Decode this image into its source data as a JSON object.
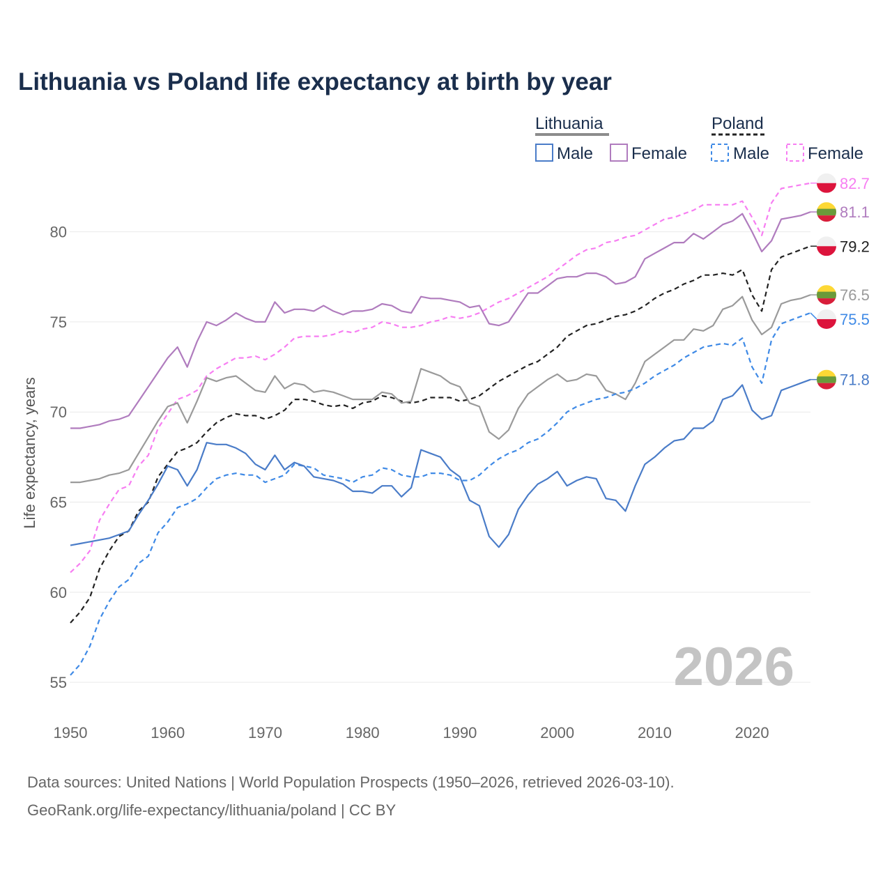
{
  "chart_data": {
    "type": "line",
    "title": "Lithuania vs Poland life expectancy at birth by year",
    "xlabel": "",
    "ylabel": "Life expectancy, years",
    "xlim": [
      1950,
      2026
    ],
    "ylim": [
      54,
      83
    ],
    "x_ticks": [
      1950,
      1960,
      1970,
      1980,
      1990,
      2000,
      2010,
      2020
    ],
    "y_ticks": [
      55,
      60,
      65,
      70,
      75,
      80
    ],
    "grid": true,
    "legend": {
      "placement": "top-right",
      "groups": [
        {
          "name": "Lithuania",
          "color": "#8c8c8c",
          "dash": false
        },
        {
          "name": "Poland",
          "color": "#222222",
          "dash": true
        }
      ],
      "entries": [
        {
          "label": "Male",
          "color": "#4a7cc8",
          "dash": false
        },
        {
          "label": "Female",
          "color": "#b07cbe",
          "dash": false
        },
        {
          "label": "Male",
          "color": "#3f8ae6",
          "dash": true
        },
        {
          "label": "Female",
          "color": "#f77ef2",
          "dash": true
        }
      ]
    },
    "current_year": "2026",
    "series": [
      {
        "name": "Poland Female",
        "country": "Poland",
        "color": "#f77ef2",
        "dash": true,
        "end_label": "82.7",
        "x": [
          1950,
          1951,
          1952,
          1953,
          1954,
          1955,
          1956,
          1957,
          1958,
          1959,
          1960,
          1961,
          1962,
          1963,
          1964,
          1965,
          1966,
          1967,
          1968,
          1969,
          1970,
          1971,
          1972,
          1973,
          1974,
          1975,
          1976,
          1977,
          1978,
          1979,
          1980,
          1981,
          1982,
          1983,
          1984,
          1985,
          1986,
          1987,
          1988,
          1989,
          1990,
          1991,
          1992,
          1993,
          1994,
          1995,
          1996,
          1997,
          1998,
          1999,
          2000,
          2001,
          2002,
          2003,
          2004,
          2005,
          2006,
          2007,
          2008,
          2009,
          2010,
          2011,
          2012,
          2013,
          2014,
          2015,
          2016,
          2017,
          2018,
          2019,
          2020,
          2021,
          2022,
          2023,
          2024,
          2025,
          2026
        ],
        "y": [
          61.1,
          61.6,
          62.3,
          64.0,
          64.9,
          65.7,
          65.9,
          67.0,
          67.6,
          69.1,
          69.9,
          70.7,
          70.9,
          71.2,
          72.0,
          72.4,
          72.7,
          73.0,
          73.0,
          73.1,
          72.9,
          73.2,
          73.6,
          74.1,
          74.2,
          74.2,
          74.2,
          74.3,
          74.5,
          74.4,
          74.6,
          74.7,
          75.0,
          74.9,
          74.7,
          74.7,
          74.8,
          75.0,
          75.1,
          75.3,
          75.2,
          75.3,
          75.5,
          75.8,
          76.1,
          76.3,
          76.6,
          76.9,
          77.2,
          77.5,
          77.9,
          78.3,
          78.7,
          79.0,
          79.1,
          79.4,
          79.5,
          79.7,
          79.8,
          80.1,
          80.4,
          80.7,
          80.8,
          81.0,
          81.2,
          81.5,
          81.5,
          81.5,
          81.5,
          81.7,
          80.8,
          79.8,
          81.6,
          82.4,
          82.5,
          82.6,
          82.7
        ]
      },
      {
        "name": "Lithuania Female",
        "country": "Lithuania",
        "color": "#b07cbe",
        "dash": false,
        "end_label": "81.1",
        "x": [
          1950,
          1951,
          1952,
          1953,
          1954,
          1955,
          1956,
          1957,
          1958,
          1959,
          1960,
          1961,
          1962,
          1963,
          1964,
          1965,
          1966,
          1967,
          1968,
          1969,
          1970,
          1971,
          1972,
          1973,
          1974,
          1975,
          1976,
          1977,
          1978,
          1979,
          1980,
          1981,
          1982,
          1983,
          1984,
          1985,
          1986,
          1987,
          1988,
          1989,
          1990,
          1991,
          1992,
          1993,
          1994,
          1995,
          1996,
          1997,
          1998,
          1999,
          2000,
          2001,
          2002,
          2003,
          2004,
          2005,
          2006,
          2007,
          2008,
          2009,
          2010,
          2011,
          2012,
          2013,
          2014,
          2015,
          2016,
          2017,
          2018,
          2019,
          2020,
          2021,
          2022,
          2023,
          2024,
          2025,
          2026
        ],
        "y": [
          69.1,
          69.1,
          69.2,
          69.3,
          69.5,
          69.6,
          69.8,
          70.6,
          71.4,
          72.2,
          73.0,
          73.6,
          72.5,
          73.9,
          75.0,
          74.8,
          75.1,
          75.5,
          75.2,
          75.0,
          75.0,
          76.1,
          75.5,
          75.7,
          75.7,
          75.6,
          75.9,
          75.6,
          75.4,
          75.6,
          75.6,
          75.7,
          76.0,
          75.9,
          75.6,
          75.5,
          76.4,
          76.3,
          76.3,
          76.2,
          76.1,
          75.8,
          75.9,
          74.9,
          74.8,
          75.0,
          75.8,
          76.6,
          76.6,
          77.0,
          77.4,
          77.5,
          77.5,
          77.7,
          77.7,
          77.5,
          77.1,
          77.2,
          77.5,
          78.5,
          78.8,
          79.1,
          79.4,
          79.4,
          79.9,
          79.6,
          80.0,
          80.4,
          80.6,
          81.0,
          80.0,
          78.9,
          79.5,
          80.7,
          80.8,
          80.9,
          81.1
        ]
      },
      {
        "name": "Poland Total",
        "country": "Poland",
        "color": "#222222",
        "dash": true,
        "end_label": "79.2",
        "x": [
          1950,
          1951,
          1952,
          1953,
          1954,
          1955,
          1956,
          1957,
          1958,
          1959,
          1960,
          1961,
          1962,
          1963,
          1964,
          1965,
          1966,
          1967,
          1968,
          1969,
          1970,
          1971,
          1972,
          1973,
          1974,
          1975,
          1976,
          1977,
          1978,
          1979,
          1980,
          1981,
          1982,
          1983,
          1984,
          1985,
          1986,
          1987,
          1988,
          1989,
          1990,
          1991,
          1992,
          1993,
          1994,
          1995,
          1996,
          1997,
          1998,
          1999,
          2000,
          2001,
          2002,
          2003,
          2004,
          2005,
          2006,
          2007,
          2008,
          2009,
          2010,
          2011,
          2012,
          2013,
          2014,
          2015,
          2016,
          2017,
          2018,
          2019,
          2020,
          2021,
          2022,
          2023,
          2024,
          2025,
          2026
        ],
        "y": [
          58.3,
          58.9,
          59.7,
          61.3,
          62.3,
          63.1,
          63.4,
          64.5,
          65.0,
          66.4,
          67.1,
          67.8,
          68.0,
          68.3,
          68.9,
          69.4,
          69.7,
          69.9,
          69.8,
          69.8,
          69.6,
          69.8,
          70.1,
          70.7,
          70.7,
          70.6,
          70.4,
          70.3,
          70.4,
          70.2,
          70.5,
          70.6,
          70.9,
          70.8,
          70.6,
          70.5,
          70.6,
          70.8,
          70.8,
          70.8,
          70.6,
          70.7,
          70.9,
          71.3,
          71.7,
          72.0,
          72.3,
          72.6,
          72.8,
          73.2,
          73.6,
          74.2,
          74.5,
          74.8,
          74.9,
          75.1,
          75.3,
          75.4,
          75.6,
          75.9,
          76.3,
          76.6,
          76.8,
          77.1,
          77.3,
          77.6,
          77.6,
          77.7,
          77.6,
          77.9,
          76.5,
          75.6,
          77.9,
          78.6,
          78.8,
          79.0,
          79.2
        ]
      },
      {
        "name": "Lithuania Total",
        "country": "Lithuania",
        "color": "#9a9a9a",
        "dash": false,
        "end_label": "76.5",
        "x": [
          1950,
          1951,
          1952,
          1953,
          1954,
          1955,
          1956,
          1957,
          1958,
          1959,
          1960,
          1961,
          1962,
          1963,
          1964,
          1965,
          1966,
          1967,
          1968,
          1969,
          1970,
          1971,
          1972,
          1973,
          1974,
          1975,
          1976,
          1977,
          1978,
          1979,
          1980,
          1981,
          1982,
          1983,
          1984,
          1985,
          1986,
          1987,
          1988,
          1989,
          1990,
          1991,
          1992,
          1993,
          1994,
          1995,
          1996,
          1997,
          1998,
          1999,
          2000,
          2001,
          2002,
          2003,
          2004,
          2005,
          2006,
          2007,
          2008,
          2009,
          2010,
          2011,
          2012,
          2013,
          2014,
          2015,
          2016,
          2017,
          2018,
          2019,
          2020,
          2021,
          2022,
          2023,
          2024,
          2025,
          2026
        ],
        "y": [
          66.1,
          66.1,
          66.2,
          66.3,
          66.5,
          66.6,
          66.8,
          67.7,
          68.6,
          69.5,
          70.3,
          70.5,
          69.4,
          70.6,
          71.9,
          71.7,
          71.9,
          72.0,
          71.6,
          71.2,
          71.1,
          72.0,
          71.3,
          71.6,
          71.5,
          71.1,
          71.2,
          71.1,
          70.9,
          70.7,
          70.7,
          70.7,
          71.1,
          71.0,
          70.5,
          70.6,
          72.4,
          72.2,
          72.0,
          71.6,
          71.4,
          70.5,
          70.3,
          68.9,
          68.5,
          69.0,
          70.2,
          71.0,
          71.4,
          71.8,
          72.1,
          71.7,
          71.8,
          72.1,
          72.0,
          71.2,
          71.0,
          70.7,
          71.6,
          72.8,
          73.2,
          73.6,
          74.0,
          74.0,
          74.6,
          74.5,
          74.8,
          75.7,
          75.9,
          76.4,
          75.1,
          74.3,
          74.7,
          76.0,
          76.2,
          76.3,
          76.5
        ]
      },
      {
        "name": "Poland Male",
        "country": "Poland",
        "color": "#3f8ae6",
        "dash": true,
        "end_label": "75.5",
        "x": [
          1950,
          1951,
          1952,
          1953,
          1954,
          1955,
          1956,
          1957,
          1958,
          1959,
          1960,
          1961,
          1962,
          1963,
          1964,
          1965,
          1966,
          1967,
          1968,
          1969,
          1970,
          1971,
          1972,
          1973,
          1974,
          1975,
          1976,
          1977,
          1978,
          1979,
          1980,
          1981,
          1982,
          1983,
          1984,
          1985,
          1986,
          1987,
          1988,
          1989,
          1990,
          1991,
          1992,
          1993,
          1994,
          1995,
          1996,
          1997,
          1998,
          1999,
          2000,
          2001,
          2002,
          2003,
          2004,
          2005,
          2006,
          2007,
          2008,
          2009,
          2010,
          2011,
          2012,
          2013,
          2014,
          2015,
          2016,
          2017,
          2018,
          2019,
          2020,
          2021,
          2022,
          2023,
          2024,
          2025,
          2026
        ],
        "y": [
          55.4,
          56.0,
          57.0,
          58.5,
          59.5,
          60.3,
          60.7,
          61.6,
          62.0,
          63.3,
          63.9,
          64.7,
          64.9,
          65.2,
          65.8,
          66.3,
          66.5,
          66.6,
          66.5,
          66.5,
          66.1,
          66.3,
          66.5,
          67.1,
          67.0,
          66.9,
          66.5,
          66.4,
          66.3,
          66.1,
          66.4,
          66.5,
          66.9,
          66.8,
          66.5,
          66.4,
          66.4,
          66.6,
          66.6,
          66.5,
          66.2,
          66.2,
          66.5,
          67.0,
          67.4,
          67.7,
          67.9,
          68.3,
          68.5,
          68.9,
          69.4,
          70.0,
          70.3,
          70.5,
          70.7,
          70.8,
          71.0,
          71.1,
          71.3,
          71.6,
          72.0,
          72.3,
          72.6,
          73.0,
          73.3,
          73.6,
          73.7,
          73.8,
          73.7,
          74.1,
          72.5,
          71.6,
          74.0,
          74.9,
          75.1,
          75.3,
          75.5
        ]
      },
      {
        "name": "Lithuania Male",
        "country": "Lithuania",
        "color": "#4a7cc8",
        "dash": false,
        "end_label": "71.8",
        "x": [
          1950,
          1951,
          1952,
          1953,
          1954,
          1955,
          1956,
          1957,
          1958,
          1959,
          1960,
          1961,
          1962,
          1963,
          1964,
          1965,
          1966,
          1967,
          1968,
          1969,
          1970,
          1971,
          1972,
          1973,
          1974,
          1975,
          1976,
          1977,
          1978,
          1979,
          1980,
          1981,
          1982,
          1983,
          1984,
          1985,
          1986,
          1987,
          1988,
          1989,
          1990,
          1991,
          1992,
          1993,
          1994,
          1995,
          1996,
          1997,
          1998,
          1999,
          2000,
          2001,
          2002,
          2003,
          2004,
          2005,
          2006,
          2007,
          2008,
          2009,
          2010,
          2011,
          2012,
          2013,
          2014,
          2015,
          2016,
          2017,
          2018,
          2019,
          2020,
          2021,
          2022,
          2023,
          2024,
          2025,
          2026
        ],
        "y": [
          62.6,
          62.7,
          62.8,
          62.9,
          63.0,
          63.2,
          63.4,
          64.3,
          65.1,
          66.0,
          67.0,
          66.8,
          65.9,
          66.8,
          68.3,
          68.2,
          68.2,
          68.0,
          67.7,
          67.1,
          66.8,
          67.6,
          66.8,
          67.2,
          67.0,
          66.4,
          66.3,
          66.2,
          66.0,
          65.6,
          65.6,
          65.5,
          65.9,
          65.9,
          65.3,
          65.8,
          67.9,
          67.7,
          67.5,
          66.8,
          66.4,
          65.1,
          64.8,
          63.1,
          62.5,
          63.2,
          64.6,
          65.4,
          66.0,
          66.3,
          66.7,
          65.9,
          66.2,
          66.4,
          66.3,
          65.2,
          65.1,
          64.5,
          65.9,
          67.1,
          67.5,
          68.0,
          68.4,
          68.5,
          69.1,
          69.1,
          69.5,
          70.7,
          70.9,
          71.5,
          70.1,
          69.6,
          69.8,
          71.2,
          71.4,
          71.6,
          71.8
        ]
      }
    ]
  },
  "source": {
    "line1": "Data sources: United Nations | World Population Prospects (1950–2026, retrieved 2026-03-10).",
    "line2": "GeoRank.org/life-expectancy/lithuania/poland | CC BY"
  }
}
